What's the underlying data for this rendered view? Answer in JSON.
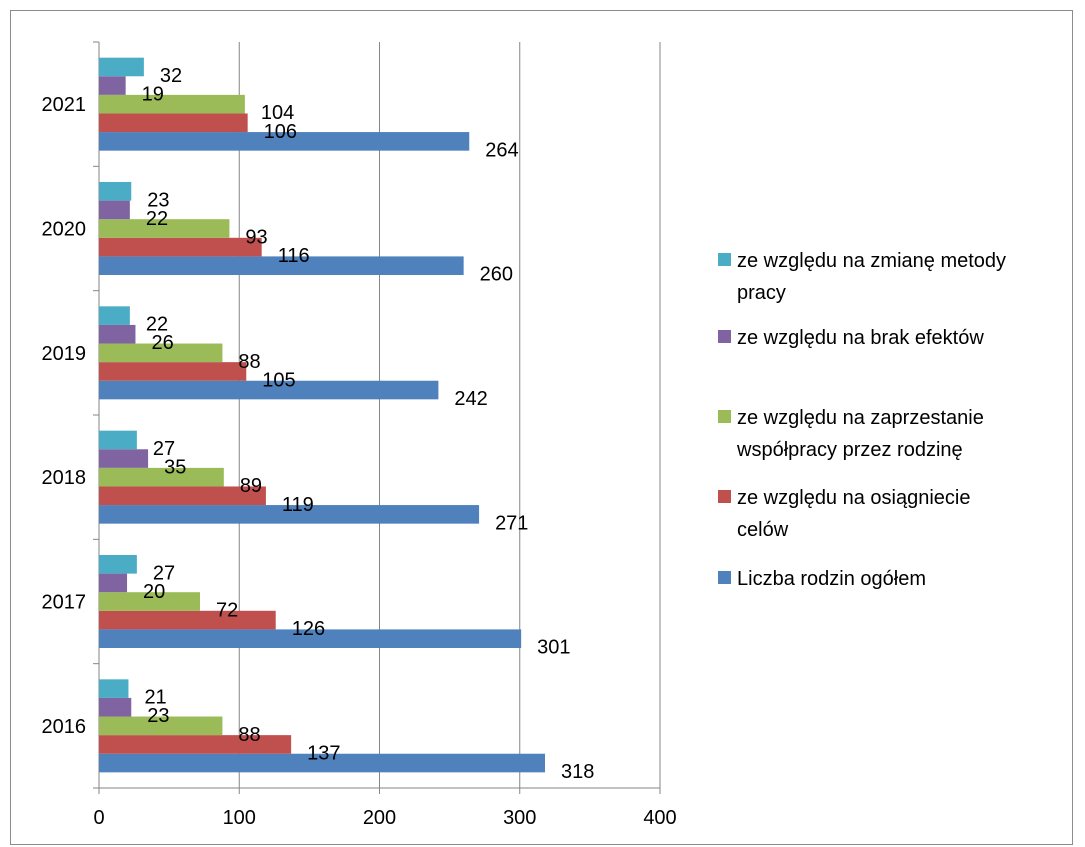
{
  "chart_data": {
    "type": "bar",
    "orientation": "horizontal",
    "categories": [
      "2016",
      "2017",
      "2018",
      "2019",
      "2020",
      "2021"
    ],
    "series": [
      {
        "name": "Liczba rodzin ogółem",
        "color": "#4F81BD",
        "values": [
          318,
          301,
          271,
          242,
          260,
          264
        ]
      },
      {
        "name": "ze względu na osiągniecie celów",
        "color": "#C0504D",
        "values": [
          137,
          126,
          119,
          105,
          116,
          106
        ]
      },
      {
        "name": "ze względu na zaprzestanie współpracy przez rodzinę",
        "color": "#9BBB59",
        "values": [
          88,
          72,
          89,
          88,
          93,
          104
        ]
      },
      {
        "name": "ze względu na brak efektów",
        "color": "#8064A2",
        "values": [
          23,
          20,
          35,
          26,
          22,
          19
        ]
      },
      {
        "name": "ze względu na zmianę metody pracy",
        "color": "#4BACC6",
        "values": [
          21,
          27,
          27,
          22,
          23,
          32
        ]
      }
    ],
    "xlim": [
      0,
      400
    ],
    "xticks": [
      "0",
      "100",
      "200",
      "300",
      "400"
    ],
    "grid": true,
    "data_labels": true,
    "legend_position": "right",
    "legend": [
      {
        "lines": [
          "ze względu na zmianę metody",
          "pracy"
        ],
        "color": "#4BACC6"
      },
      {
        "lines": [
          "ze względu na brak efektów"
        ],
        "color": "#8064A2"
      },
      {
        "lines": [
          "ze względu na zaprzestanie",
          "współpracy przez rodzinę"
        ],
        "color": "#9BBB59"
      },
      {
        "lines": [
          "ze względu na osiągniecie",
          "celów"
        ],
        "color": "#C0504D"
      },
      {
        "lines": [
          "Liczba rodzin ogółem"
        ],
        "color": "#4F81BD"
      }
    ]
  }
}
